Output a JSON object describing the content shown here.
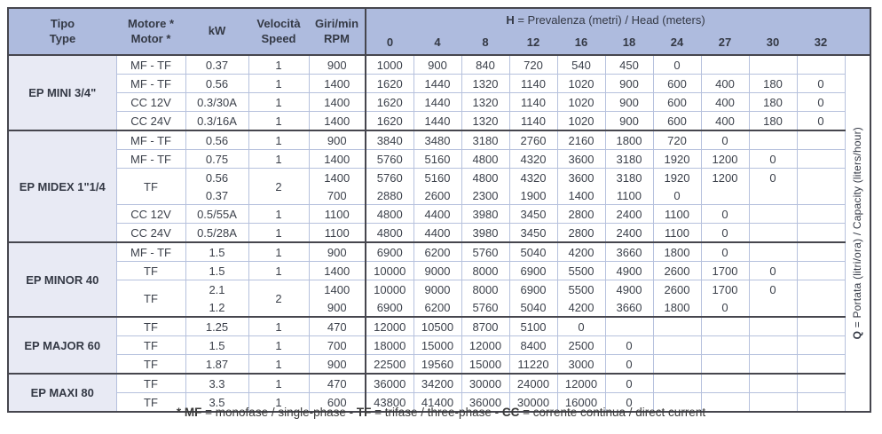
{
  "colors": {
    "header_bg": "#aebbde",
    "section_bg": "#e8eaf4",
    "grid_line": "#b6c1dd",
    "dark_line": "#46464e",
    "header_text": "#343945",
    "text": "#3c414b"
  },
  "table": {
    "columns": {
      "tipo": {
        "line1": "Tipo",
        "line2": "Type"
      },
      "motore": {
        "line1": "Motore *",
        "line2": "Motor *"
      },
      "kw": {
        "label": "kW"
      },
      "velocita": {
        "line1": "Velocità",
        "line2": "Speed"
      },
      "giri": {
        "line1": "Giri/min",
        "line2": "RPM"
      }
    },
    "head_title": {
      "bold": "H",
      "rest": " = Prevalenza (metri) / Head (meters)"
    },
    "head_columns": [
      "0",
      "4",
      "8",
      "12",
      "16",
      "18",
      "24",
      "27",
      "30",
      "32"
    ],
    "q_label": {
      "bold": "Q",
      "rest": " = Portata (litri/ora) / Capacity (liters/hour)"
    },
    "total_rows": 19,
    "sections": [
      {
        "name": "EP MINI 3/4\"",
        "rows": [
          {
            "motor": "MF - TF",
            "kw": "0.37",
            "speed": "1",
            "rpm": "900",
            "values": [
              "1000",
              "900",
              "840",
              "720",
              "540",
              "450",
              "0",
              "",
              "",
              ""
            ]
          },
          {
            "motor": "MF - TF",
            "kw": "0.56",
            "speed": "1",
            "rpm": "1400",
            "values": [
              "1620",
              "1440",
              "1320",
              "1140",
              "1020",
              "900",
              "600",
              "400",
              "180",
              "0"
            ]
          },
          {
            "motor": "CC 12V",
            "kw": "0.3/30A",
            "speed": "1",
            "rpm": "1400",
            "values": [
              "1620",
              "1440",
              "1320",
              "1140",
              "1020",
              "900",
              "600",
              "400",
              "180",
              "0"
            ]
          },
          {
            "motor": "CC 24V",
            "kw": "0.3/16A",
            "speed": "1",
            "rpm": "1400",
            "values": [
              "1620",
              "1440",
              "1320",
              "1140",
              "1020",
              "900",
              "600",
              "400",
              "180",
              "0"
            ]
          }
        ]
      },
      {
        "name": "EP MIDEX 1\"1/4",
        "rows": [
          {
            "motor": "MF - TF",
            "kw": "0.56",
            "speed": "1",
            "rpm": "900",
            "values": [
              "3840",
              "3480",
              "3180",
              "2760",
              "2160",
              "1800",
              "720",
              "0",
              "",
              ""
            ]
          },
          {
            "motor": "MF - TF",
            "kw": "0.75",
            "speed": "1",
            "rpm": "1400",
            "values": [
              "5760",
              "5160",
              "4800",
              "4320",
              "3600",
              "3180",
              "1920",
              "1200",
              "0",
              ""
            ]
          },
          {
            "motor": "TF",
            "merged": true,
            "speed": "2",
            "kw": [
              "0.56",
              "0.37"
            ],
            "rpm": [
              "1400",
              "700"
            ],
            "values": [
              [
                "5760",
                "5160",
                "4800",
                "4320",
                "3600",
                "3180",
                "1920",
                "1200",
                "0",
                ""
              ],
              [
                "2880",
                "2600",
                "2300",
                "1900",
                "1400",
                "1100",
                "0",
                "",
                "",
                ""
              ]
            ]
          },
          {
            "motor": "CC 12V",
            "kw": "0.5/55A",
            "speed": "1",
            "rpm": "1100",
            "values": [
              "4800",
              "4400",
              "3980",
              "3450",
              "2800",
              "2400",
              "1100",
              "0",
              "",
              ""
            ]
          },
          {
            "motor": "CC 24V",
            "kw": "0.5/28A",
            "speed": "1",
            "rpm": "1100",
            "values": [
              "4800",
              "4400",
              "3980",
              "3450",
              "2800",
              "2400",
              "1100",
              "0",
              "",
              ""
            ]
          }
        ]
      },
      {
        "name": "EP MINOR 40",
        "rows": [
          {
            "motor": "MF - TF",
            "kw": "1.5",
            "speed": "1",
            "rpm": "900",
            "values": [
              "6900",
              "6200",
              "5760",
              "5040",
              "4200",
              "3660",
              "1800",
              "0",
              "",
              ""
            ]
          },
          {
            "motor": "TF",
            "kw": "1.5",
            "speed": "1",
            "rpm": "1400",
            "values": [
              "10000",
              "9000",
              "8000",
              "6900",
              "5500",
              "4900",
              "2600",
              "1700",
              "0",
              ""
            ]
          },
          {
            "motor": "TF",
            "merged": true,
            "speed": "2",
            "kw": [
              "2.1",
              "1.2"
            ],
            "rpm": [
              "1400",
              "900"
            ],
            "values": [
              [
                "10000",
                "9000",
                "8000",
                "6900",
                "5500",
                "4900",
                "2600",
                "1700",
                "0",
                ""
              ],
              [
                "6900",
                "6200",
                "5760",
                "5040",
                "4200",
                "3660",
                "1800",
                "0",
                "",
                ""
              ]
            ]
          }
        ]
      },
      {
        "name": "EP MAJOR 60",
        "rows": [
          {
            "motor": "TF",
            "kw": "1.25",
            "speed": "1",
            "rpm": "470",
            "values": [
              "12000",
              "10500",
              "8700",
              "5100",
              "0",
              "",
              "",
              "",
              "",
              ""
            ]
          },
          {
            "motor": "TF",
            "kw": "1.5",
            "speed": "1",
            "rpm": "700",
            "values": [
              "18000",
              "15000",
              "12000",
              "8400",
              "2500",
              "0",
              "",
              "",
              "",
              ""
            ]
          },
          {
            "motor": "TF",
            "kw": "1.87",
            "speed": "1",
            "rpm": "900",
            "values": [
              "22500",
              "19560",
              "15000",
              "11220",
              "3000",
              "0",
              "",
              "",
              "",
              ""
            ]
          }
        ]
      },
      {
        "name": "EP MAXI 80",
        "rows": [
          {
            "motor": "TF",
            "kw": "3.3",
            "speed": "1",
            "rpm": "470",
            "values": [
              "36000",
              "34200",
              "30000",
              "24000",
              "12000",
              "0",
              "",
              "",
              "",
              ""
            ]
          },
          {
            "motor": "TF",
            "kw": "3.5",
            "speed": "1",
            "rpm": "600",
            "values": [
              "43800",
              "41400",
              "36000",
              "30000",
              "16000",
              "0",
              "",
              "",
              "",
              ""
            ]
          }
        ]
      }
    ]
  },
  "footnote": {
    "segments": [
      {
        "text": "* MF",
        "bold": true
      },
      {
        "text": " = monofase / single-phase - ",
        "bold": false
      },
      {
        "text": "TF",
        "bold": true
      },
      {
        "text": " = trifase / three-phase - ",
        "bold": false
      },
      {
        "text": "CC",
        "bold": true
      },
      {
        "text": " = corrente continua / direct current",
        "bold": false
      }
    ]
  }
}
